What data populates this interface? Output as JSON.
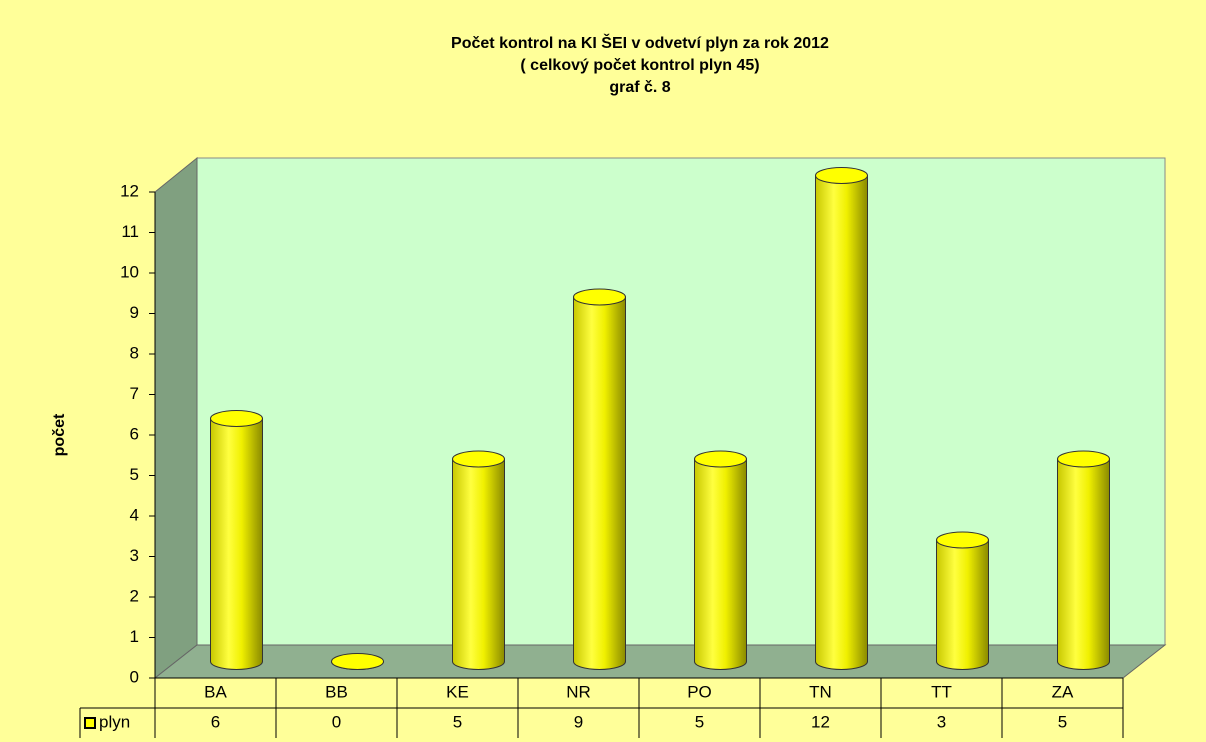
{
  "chart_data": {
    "type": "bar",
    "title": [
      "Počet kontrol na KI ŠEI v odvetví plyn za rok 2012",
      "( celkový počet kontrol plyn 45)",
      "graf č. 8"
    ],
    "y_label": "počet",
    "categories": [
      "BA",
      "BB",
      "KE",
      "NR",
      "PO",
      "TN",
      "TT",
      "ZA"
    ],
    "series": [
      {
        "name": "plyn",
        "color": "#ffff00",
        "values": [
          6,
          0,
          5,
          9,
          5,
          12,
          3,
          5
        ]
      }
    ],
    "ylim": [
      0,
      12
    ],
    "yticks": [
      0,
      1,
      2,
      3,
      4,
      5,
      6,
      7,
      8,
      9,
      10,
      11,
      12
    ]
  }
}
